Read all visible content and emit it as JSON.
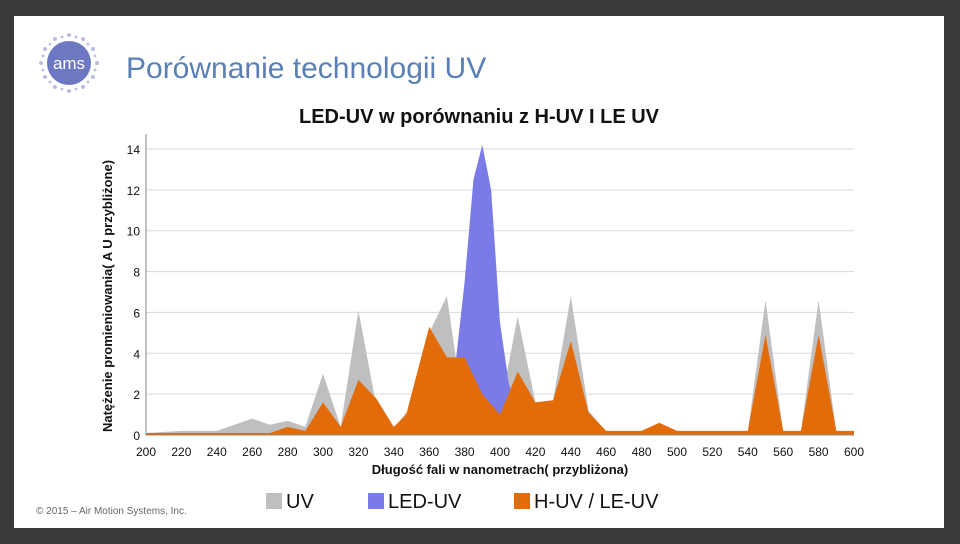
{
  "header": {
    "title": "Porównanie technologii UV",
    "logo_text": "ams"
  },
  "footer": {
    "copyright": "© 2015 – Air Motion Systems, Inc."
  },
  "colors": {
    "uv": "#bfbfbf",
    "led_uv": "#7b7be8",
    "h_uv": "#e36c0a",
    "title": "#5a7fb5",
    "background": "#3a3a3a"
  },
  "chart_data": {
    "type": "area",
    "title": "LED-UV  w porównaniu z H-UV I LE UV",
    "xlabel": "Długość fali w nanometrach( przybliżona)",
    "ylabel": "Natężenie promieniowania( A U przybliżone)",
    "xlim": [
      200,
      600
    ],
    "ylim": [
      0,
      14
    ],
    "xticks": [
      200,
      220,
      240,
      260,
      280,
      300,
      320,
      340,
      360,
      380,
      400,
      420,
      440,
      460,
      480,
      500,
      520,
      540,
      560,
      580,
      600
    ],
    "yticks": [
      0,
      2,
      4,
      6,
      8,
      10,
      12,
      14
    ],
    "grid": true,
    "legend_position": "bottom",
    "series": [
      {
        "name": "UV",
        "color": "#bfbfbf",
        "points": [
          [
            200,
            0.1
          ],
          [
            220,
            0.2
          ],
          [
            240,
            0.2
          ],
          [
            260,
            0.8
          ],
          [
            270,
            0.5
          ],
          [
            280,
            0.7
          ],
          [
            290,
            0.4
          ],
          [
            300,
            3.0
          ],
          [
            310,
            0.4
          ],
          [
            320,
            6.1
          ],
          [
            330,
            1.5
          ],
          [
            340,
            0.3
          ],
          [
            347,
            1.1
          ],
          [
            352,
            0.6
          ],
          [
            360,
            5.0
          ],
          [
            370,
            6.8
          ],
          [
            375,
            3.8
          ],
          [
            380,
            3.8
          ],
          [
            390,
            3.5
          ],
          [
            400,
            1.3
          ],
          [
            410,
            5.8
          ],
          [
            420,
            1.6
          ],
          [
            430,
            1.7
          ],
          [
            440,
            6.8
          ],
          [
            450,
            1.2
          ],
          [
            460,
            0.15
          ],
          [
            480,
            0.15
          ],
          [
            490,
            0.5
          ],
          [
            500,
            0.15
          ],
          [
            540,
            0.15
          ],
          [
            550,
            6.6
          ],
          [
            560,
            0.15
          ],
          [
            570,
            0.15
          ],
          [
            580,
            6.6
          ],
          [
            590,
            0.15
          ],
          [
            600,
            0.15
          ]
        ]
      },
      {
        "name": "LED-UV",
        "color": "#7b7be8",
        "points": [
          [
            375,
            3.6
          ],
          [
            380,
            7.5
          ],
          [
            385,
            12.5
          ],
          [
            390,
            14.2
          ],
          [
            395,
            12.0
          ],
          [
            400,
            5.5
          ],
          [
            405,
            2.5
          ],
          [
            410,
            1.3
          ]
        ]
      },
      {
        "name": "H-UV / LE-UV",
        "color": "#e36c0a",
        "points": [
          [
            200,
            0.1
          ],
          [
            270,
            0.1
          ],
          [
            280,
            0.4
          ],
          [
            290,
            0.2
          ],
          [
            300,
            1.6
          ],
          [
            310,
            0.4
          ],
          [
            320,
            2.7
          ],
          [
            330,
            1.8
          ],
          [
            340,
            0.4
          ],
          [
            347,
            1.0
          ],
          [
            360,
            5.3
          ],
          [
            370,
            3.8
          ],
          [
            380,
            3.8
          ],
          [
            390,
            2.0
          ],
          [
            400,
            1.0
          ],
          [
            410,
            3.1
          ],
          [
            420,
            1.6
          ],
          [
            430,
            1.7
          ],
          [
            440,
            4.6
          ],
          [
            450,
            1.1
          ],
          [
            460,
            0.2
          ],
          [
            480,
            0.2
          ],
          [
            490,
            0.6
          ],
          [
            500,
            0.2
          ],
          [
            540,
            0.2
          ],
          [
            550,
            4.9
          ],
          [
            560,
            0.2
          ],
          [
            570,
            0.2
          ],
          [
            580,
            4.9
          ],
          [
            590,
            0.2
          ],
          [
            600,
            0.2
          ]
        ]
      }
    ]
  }
}
